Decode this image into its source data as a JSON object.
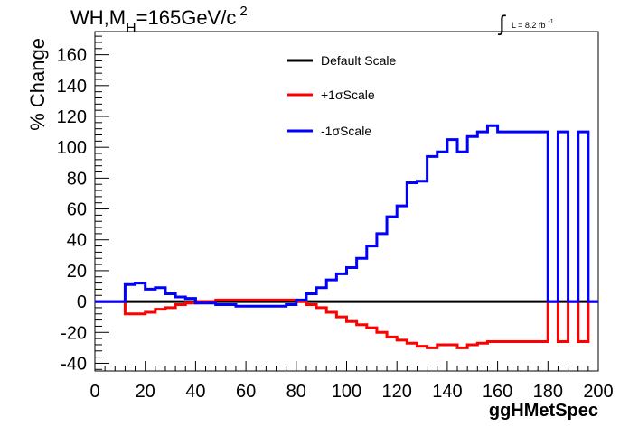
{
  "chart_data": {
    "type": "line",
    "title": "WH,M",
    "title_sub": "H",
    "title_rest": "=165GeV/c",
    "title_sup": "2",
    "lumi_label": "L = 8.2 fb",
    "lumi_sup": "-1",
    "xlabel": "ggHMetSpec",
    "ylabel": "% Change",
    "xlim": [
      0,
      200
    ],
    "ylim": [
      -45,
      175
    ],
    "xticks": [
      0,
      20,
      40,
      60,
      80,
      100,
      120,
      140,
      160,
      180,
      200
    ],
    "yticks": [
      -40,
      -20,
      0,
      20,
      40,
      60,
      80,
      100,
      120,
      140,
      160
    ],
    "grid": false,
    "legend_position": "top-center",
    "bin_edges": [
      0,
      4,
      8,
      12,
      16,
      20,
      24,
      28,
      32,
      36,
      40,
      44,
      48,
      52,
      56,
      60,
      64,
      68,
      72,
      76,
      80,
      84,
      88,
      92,
      96,
      100,
      104,
      108,
      112,
      116,
      120,
      124,
      128,
      132,
      136,
      140,
      144,
      148,
      152,
      156,
      160,
      164,
      168,
      172,
      176,
      180,
      184,
      188,
      192,
      196,
      200
    ],
    "series": [
      {
        "name": "Default Scale",
        "color": "#000000",
        "values": [
          0,
          0,
          0,
          0,
          0,
          0,
          0,
          0,
          0,
          0,
          0,
          0,
          0,
          0,
          0,
          0,
          0,
          0,
          0,
          0,
          0,
          0,
          0,
          0,
          0,
          0,
          0,
          0,
          0,
          0,
          0,
          0,
          0,
          0,
          0,
          0,
          0,
          0,
          0,
          0,
          0,
          0,
          0,
          0,
          0,
          0,
          0,
          0,
          0,
          0
        ]
      },
      {
        "name": "+1σScale",
        "color": "#ff0000",
        "values": [
          0,
          0,
          0,
          -8,
          -8,
          -7,
          -5,
          -4,
          -2,
          -1,
          0,
          0,
          1,
          1,
          1,
          1,
          1,
          1,
          1,
          1,
          0,
          -2,
          -4,
          -7,
          -10,
          -13,
          -15,
          -17,
          -20,
          -23,
          -25,
          -27,
          -29,
          -30,
          -28,
          -28,
          -30,
          -28,
          -27,
          -26,
          -26,
          -26,
          -26,
          -26,
          -26,
          0,
          -26,
          0,
          -26,
          0
        ]
      },
      {
        "name": "-1σScale",
        "color": "#0000ff",
        "values": [
          0,
          0,
          0,
          11,
          12,
          8,
          9,
          5,
          3,
          2,
          -1,
          -1,
          -2,
          -2,
          -3,
          -3,
          -3,
          -3,
          -3,
          -2,
          1,
          5,
          9,
          14,
          18,
          22,
          28,
          36,
          44,
          55,
          62,
          77,
          78,
          94,
          97,
          105,
          97,
          107,
          110,
          114,
          110,
          110,
          110,
          110,
          110,
          0,
          110,
          0,
          110,
          0
        ]
      }
    ]
  }
}
